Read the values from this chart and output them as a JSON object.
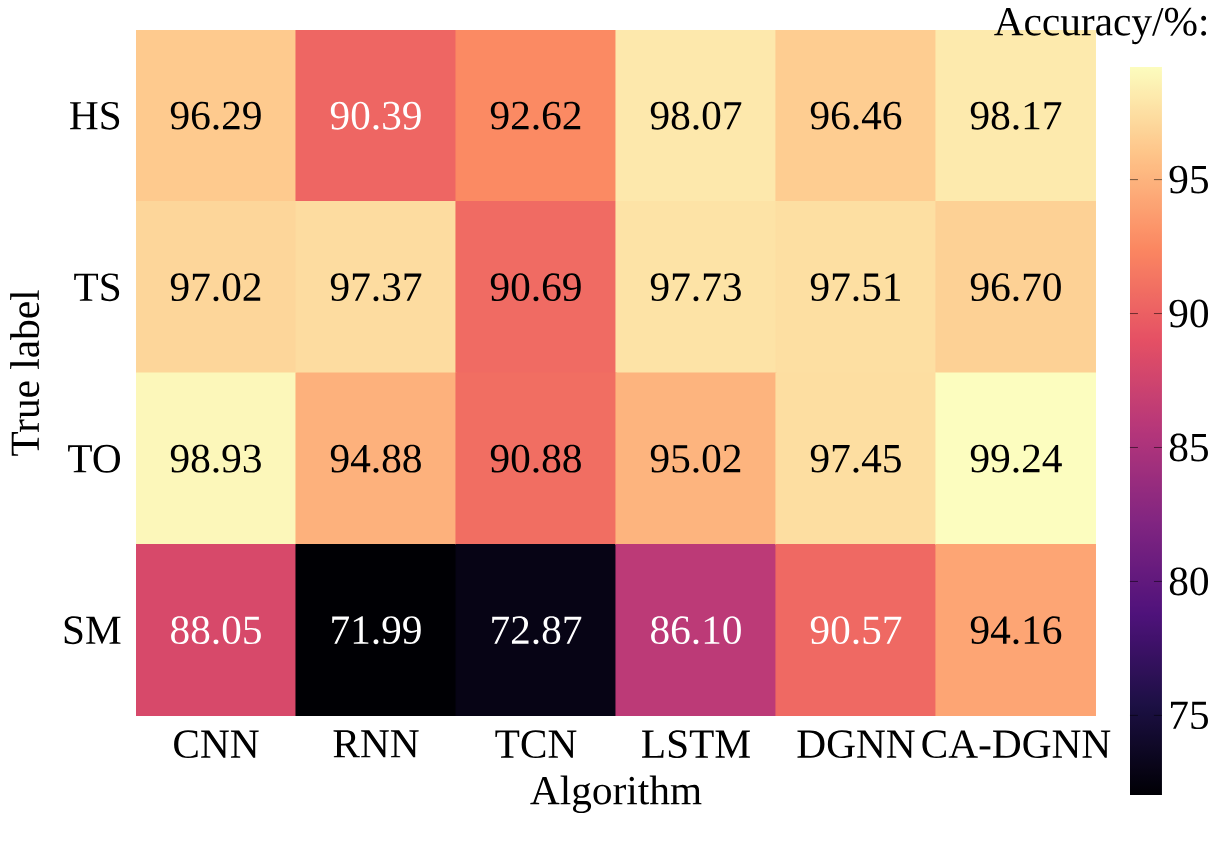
{
  "chart_data": {
    "type": "heatmap",
    "xlabel": "Algorithm",
    "ylabel": "True label",
    "clabel": "Accuracy/%:",
    "categories": [
      "CNN",
      "RNN",
      "TCN",
      "LSTM",
      "DGNN",
      "CA-DGNN"
    ],
    "y_categories": [
      "HS",
      "TS",
      "TO",
      "SM"
    ],
    "cells": [
      [
        96.29,
        90.39,
        92.62,
        98.07,
        96.46,
        98.17
      ],
      [
        97.02,
        97.37,
        90.69,
        97.73,
        97.51,
        96.7
      ],
      [
        98.93,
        94.88,
        90.88,
        95.02,
        97.45,
        99.24
      ],
      [
        88.05,
        71.99,
        72.87,
        86.1,
        90.57,
        94.16
      ]
    ],
    "cell_labels": [
      [
        "96.29",
        "90.39",
        "92.62",
        "98.07",
        "96.46",
        "98.17"
      ],
      [
        "97.02",
        "97.37",
        "90.69",
        "97.73",
        "97.51",
        "96.70"
      ],
      [
        "98.93",
        "94.88",
        "90.88",
        "95.02",
        "97.45",
        "99.24"
      ],
      [
        "88.05",
        "71.99",
        "72.87",
        "86.10",
        "90.57",
        "94.16"
      ]
    ],
    "clim": [
      71.99,
      99.24
    ],
    "cticks": [
      75,
      80,
      85,
      90,
      95
    ]
  }
}
